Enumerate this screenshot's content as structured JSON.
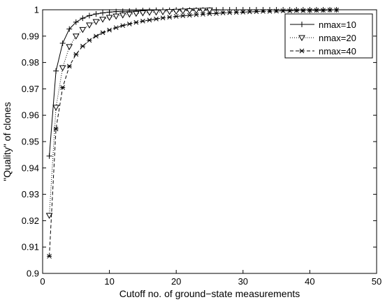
{
  "chart_data": {
    "type": "line",
    "title": "",
    "xlabel": "Cutoff no. of ground−state measurements",
    "ylabel": "\"Quality\" of clones",
    "xlim": [
      0,
      50
    ],
    "ylim": [
      0.9,
      1.0
    ],
    "xticks": [
      0,
      10,
      20,
      30,
      40,
      50
    ],
    "yticks": [
      0.9,
      0.91,
      0.92,
      0.93,
      0.94,
      0.95,
      0.96,
      0.97,
      0.98,
      0.99,
      1.0
    ],
    "xtick_labels": [
      "0",
      "10",
      "20",
      "30",
      "40",
      "50"
    ],
    "ytick_labels": [
      "0.9",
      "0.91",
      "0.92",
      "0.93",
      "0.94",
      "0.95",
      "0.96",
      "0.97",
      "0.98",
      "0.99",
      "1"
    ],
    "grid": false,
    "legend_position": "top-right",
    "series": [
      {
        "name": "nmax=10",
        "line_style": "solid",
        "marker": "plus",
        "x": [
          1,
          2,
          3,
          4,
          5,
          6,
          7,
          8,
          9,
          10,
          11,
          12,
          13,
          14,
          15,
          16,
          17,
          18,
          19,
          20,
          21,
          22,
          23,
          24,
          25,
          26,
          27,
          28,
          29,
          30,
          31,
          32,
          33,
          34,
          35,
          36,
          37,
          38,
          39,
          40,
          41,
          42,
          43,
          44
        ],
        "y": [
          0.9445,
          0.9768,
          0.9873,
          0.9927,
          0.9953,
          0.9968,
          0.9978,
          0.9984,
          0.9988,
          0.9991,
          0.9993,
          0.9994,
          0.9995,
          0.9996,
          0.9997,
          0.9997,
          0.9998,
          0.9998,
          0.9998,
          0.9999,
          0.9999,
          0.9999,
          0.9999,
          0.9999,
          0.9999,
          0.9999,
          1.0,
          1.0,
          1.0,
          1.0,
          1.0,
          1.0,
          1.0,
          1.0,
          1.0,
          1.0,
          1.0,
          1.0,
          1.0,
          1.0,
          1.0,
          1.0,
          1.0,
          1.0
        ]
      },
      {
        "name": "nmax=20",
        "line_style": "dotted",
        "marker": "triangle-down",
        "x": [
          1,
          2,
          3,
          4,
          5,
          6,
          7,
          8,
          9,
          10,
          11,
          12,
          13,
          14,
          15,
          16,
          17,
          18,
          19,
          20,
          21,
          22,
          23,
          24,
          25
        ],
        "y": [
          0.922,
          0.963,
          0.978,
          0.986,
          0.99,
          0.9925,
          0.9942,
          0.9955,
          0.9964,
          0.9971,
          0.9976,
          0.998,
          0.9983,
          0.9986,
          0.9988,
          0.999,
          0.9991,
          0.9992,
          0.9993,
          0.9994,
          0.9995,
          0.9996,
          0.9997,
          0.9998,
          0.9999
        ]
      },
      {
        "name": "nmax=40",
        "line_style": "dashed",
        "marker": "star",
        "x": [
          1,
          2,
          3,
          4,
          5,
          6,
          7,
          8,
          9,
          10,
          11,
          12,
          13,
          14,
          15,
          16,
          17,
          18,
          19,
          20,
          21,
          22,
          23,
          24,
          25,
          26,
          27,
          28,
          29,
          30,
          31,
          32,
          33,
          34,
          35,
          36,
          37,
          38,
          39,
          40,
          41,
          42,
          43,
          44
        ],
        "y": [
          0.9065,
          0.9548,
          0.9705,
          0.9786,
          0.9831,
          0.9862,
          0.9884,
          0.99,
          0.9913,
          0.9923,
          0.9932,
          0.994,
          0.9946,
          0.9952,
          0.9957,
          0.9961,
          0.9965,
          0.9969,
          0.9972,
          0.9975,
          0.9977,
          0.9979,
          0.9981,
          0.9983,
          0.9985,
          0.9986,
          0.9988,
          0.9989,
          0.999,
          0.9991,
          0.9992,
          0.9993,
          0.9994,
          0.9994,
          0.9995,
          0.9996,
          0.9996,
          0.9997,
          0.9997,
          0.9998,
          0.9998,
          0.9998,
          0.9999,
          0.9999
        ]
      }
    ]
  }
}
